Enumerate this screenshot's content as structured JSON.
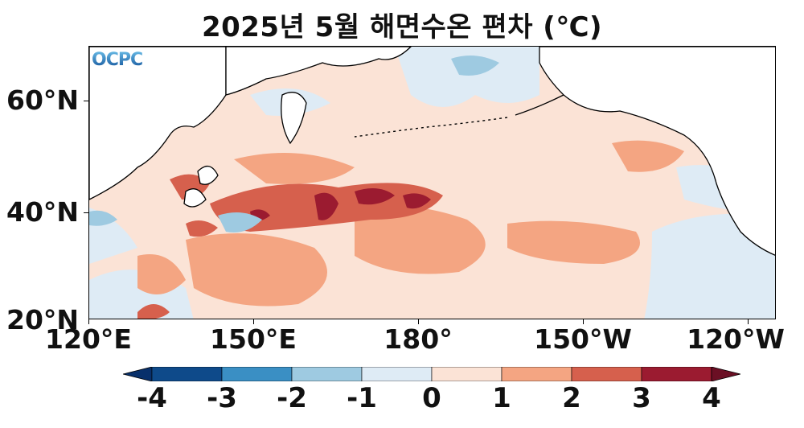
{
  "title": "2025년 5월 해면수온 편차 (℃)",
  "logo_text": "OCPC",
  "lat_labels": [
    "60°N",
    "40°N",
    "20°N"
  ],
  "lon_labels": [
    "120°E",
    "150°E",
    "180°",
    "150°W",
    "120°W"
  ],
  "colorbar": {
    "labels": [
      "-4",
      "-3",
      "-2",
      "-1",
      "0",
      "1",
      "2",
      "3",
      "4"
    ],
    "colors": [
      "#0e4a8a",
      "#3a8fc4",
      "#9ecae1",
      "#deebf5",
      "#fbe3d6",
      "#f4a582",
      "#d6604d",
      "#9b1b30"
    ]
  },
  "map": {
    "region": "North Pacific",
    "lat_range": [
      20,
      70
    ],
    "lon_range": [
      "120°E",
      "120°W"
    ],
    "variable": "sea surface temperature anomaly"
  }
}
